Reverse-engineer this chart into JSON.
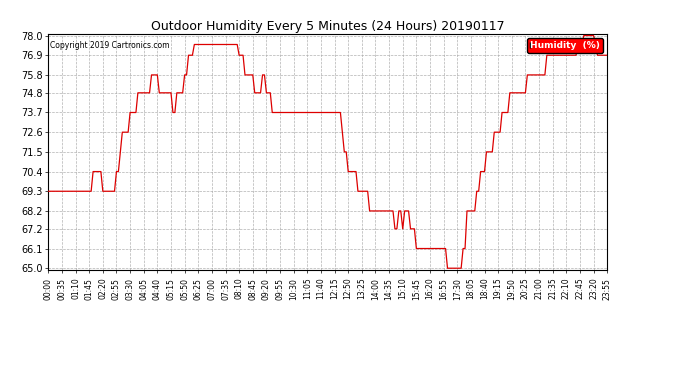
{
  "title": "Outdoor Humidity Every 5 Minutes (24 Hours) 20190117",
  "copyright": "Copyright 2019 Cartronics.com",
  "legend_label": "Humidity  (%)",
  "ylim": [
    65.0,
    78.0
  ],
  "yticks": [
    65.0,
    66.1,
    67.2,
    68.2,
    69.3,
    70.4,
    71.5,
    72.6,
    73.7,
    74.8,
    75.8,
    76.9,
    78.0
  ],
  "line_color": "#dd0000",
  "background_color": "#ffffff",
  "grid_color": "#aaaaaa",
  "xtick_labels": [
    "00:00",
    "00:35",
    "01:10",
    "01:45",
    "02:20",
    "02:55",
    "03:30",
    "04:05",
    "04:40",
    "05:15",
    "05:50",
    "06:25",
    "07:00",
    "07:35",
    "08:10",
    "08:45",
    "09:20",
    "09:55",
    "10:30",
    "11:05",
    "11:40",
    "12:15",
    "12:50",
    "13:25",
    "14:00",
    "14:35",
    "15:10",
    "15:45",
    "16:20",
    "16:55",
    "17:30",
    "18:05",
    "18:40",
    "19:15",
    "19:50",
    "20:25",
    "21:00",
    "21:35",
    "22:10",
    "22:45",
    "23:20",
    "23:55"
  ],
  "humidity_values": [
    69.3,
    69.3,
    69.3,
    69.3,
    69.3,
    69.3,
    69.3,
    69.3,
    69.3,
    69.3,
    69.3,
    69.3,
    69.3,
    69.3,
    69.3,
    69.3,
    69.3,
    69.3,
    69.3,
    69.3,
    69.3,
    69.3,
    69.3,
    70.4,
    70.4,
    70.4,
    70.4,
    70.4,
    69.3,
    69.3,
    69.3,
    69.3,
    69.3,
    69.3,
    69.3,
    70.4,
    70.4,
    71.5,
    72.6,
    72.6,
    72.6,
    72.6,
    73.7,
    73.7,
    73.7,
    73.7,
    74.8,
    74.8,
    74.8,
    74.8,
    74.8,
    74.8,
    74.8,
    75.8,
    75.8,
    75.8,
    75.8,
    74.8,
    74.8,
    74.8,
    74.8,
    74.8,
    74.8,
    74.8,
    73.7,
    73.7,
    74.8,
    74.8,
    74.8,
    74.8,
    75.8,
    75.8,
    76.9,
    76.9,
    76.9,
    77.5,
    77.5,
    77.5,
    77.5,
    77.5,
    77.5,
    77.5,
    77.5,
    77.5,
    77.5,
    77.5,
    77.5,
    77.5,
    77.5,
    77.5,
    77.5,
    77.5,
    77.5,
    77.5,
    77.5,
    77.5,
    77.5,
    77.5,
    76.9,
    76.9,
    76.9,
    75.8,
    75.8,
    75.8,
    75.8,
    75.8,
    74.8,
    74.8,
    74.8,
    74.8,
    75.8,
    75.8,
    74.8,
    74.8,
    74.8,
    73.7,
    73.7,
    73.7,
    73.7,
    73.7,
    73.7,
    73.7,
    73.7,
    73.7,
    73.7,
    73.7,
    73.7,
    73.7,
    73.7,
    73.7,
    73.7,
    73.7,
    73.7,
    73.7,
    73.7,
    73.7,
    73.7,
    73.7,
    73.7,
    73.7,
    73.7,
    73.7,
    73.7,
    73.7,
    73.7,
    73.7,
    73.7,
    73.7,
    73.7,
    73.7,
    73.7,
    72.6,
    71.5,
    71.5,
    70.4,
    70.4,
    70.4,
    70.4,
    70.4,
    69.3,
    69.3,
    69.3,
    69.3,
    69.3,
    69.3,
    68.2,
    68.2,
    68.2,
    68.2,
    68.2,
    68.2,
    68.2,
    68.2,
    68.2,
    68.2,
    68.2,
    68.2,
    68.2,
    67.2,
    67.2,
    68.2,
    68.2,
    67.2,
    68.2,
    68.2,
    68.2,
    67.2,
    67.2,
    67.2,
    66.1,
    66.1,
    66.1,
    66.1,
    66.1,
    66.1,
    66.1,
    66.1,
    66.1,
    66.1,
    66.1,
    66.1,
    66.1,
    66.1,
    66.1,
    66.1,
    65.0,
    65.0,
    65.0,
    65.0,
    65.0,
    65.0,
    65.0,
    65.0,
    66.1,
    66.1,
    68.2,
    68.2,
    68.2,
    68.2,
    68.2,
    69.3,
    69.3,
    70.4,
    70.4,
    70.4,
    71.5,
    71.5,
    71.5,
    71.5,
    72.6,
    72.6,
    72.6,
    72.6,
    73.7,
    73.7,
    73.7,
    73.7,
    74.8,
    74.8,
    74.8,
    74.8,
    74.8,
    74.8,
    74.8,
    74.8,
    74.8,
    75.8,
    75.8,
    75.8,
    75.8,
    75.8,
    75.8,
    75.8,
    75.8,
    75.8,
    75.8,
    76.9,
    76.9,
    76.9,
    76.9,
    76.9,
    76.9,
    76.9,
    76.9,
    76.9,
    76.9,
    76.9,
    76.9,
    76.9,
    76.9,
    76.9,
    76.9,
    77.5,
    77.5,
    77.5,
    78.0,
    78.0,
    78.0,
    78.0,
    78.0,
    78.0,
    77.5,
    76.9,
    76.9,
    76.9,
    76.9,
    76.9,
    76.9,
    76.9,
    76.9
  ]
}
